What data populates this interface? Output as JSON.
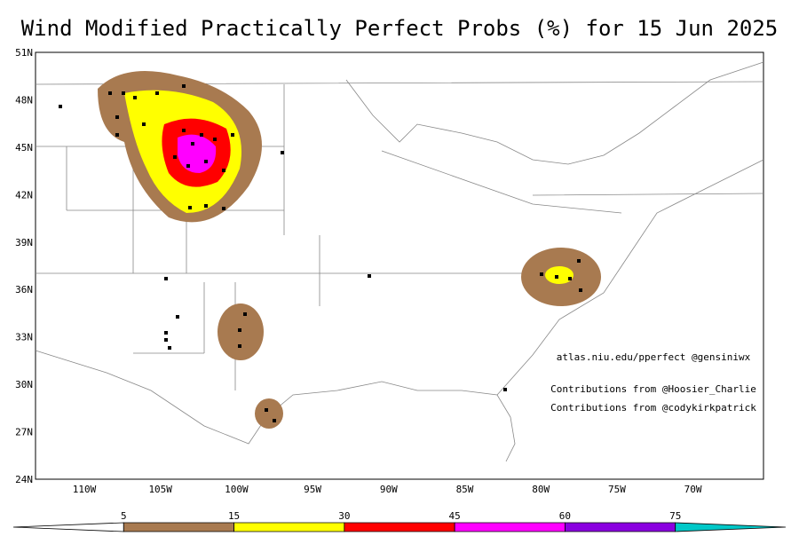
{
  "title": "Wind Modified Practically Perfect Probs (%) for 15 Jun 2025",
  "lat_labels": [
    "51N",
    "48N",
    "45N",
    "42N",
    "39N",
    "36N",
    "33N",
    "30N",
    "27N",
    "24N"
  ],
  "lon_labels": [
    "110W",
    "105W",
    "100W",
    "95W",
    "90W",
    "85W",
    "80W",
    "75W",
    "70W"
  ],
  "credits": [
    "atlas.niu.edu/pperfect @gensiniwx",
    "Contributions from @Hoosier_Charlie",
    "Contributions from @codykirkpatrick"
  ],
  "colorbar": {
    "levels": [
      5,
      15,
      30,
      45,
      60,
      75
    ],
    "colors": [
      "#ffffff",
      "#a87a50",
      "#ffff00",
      "#ff0000",
      "#ff00ff",
      "#8a00e0",
      "#00c8c8"
    ]
  }
}
